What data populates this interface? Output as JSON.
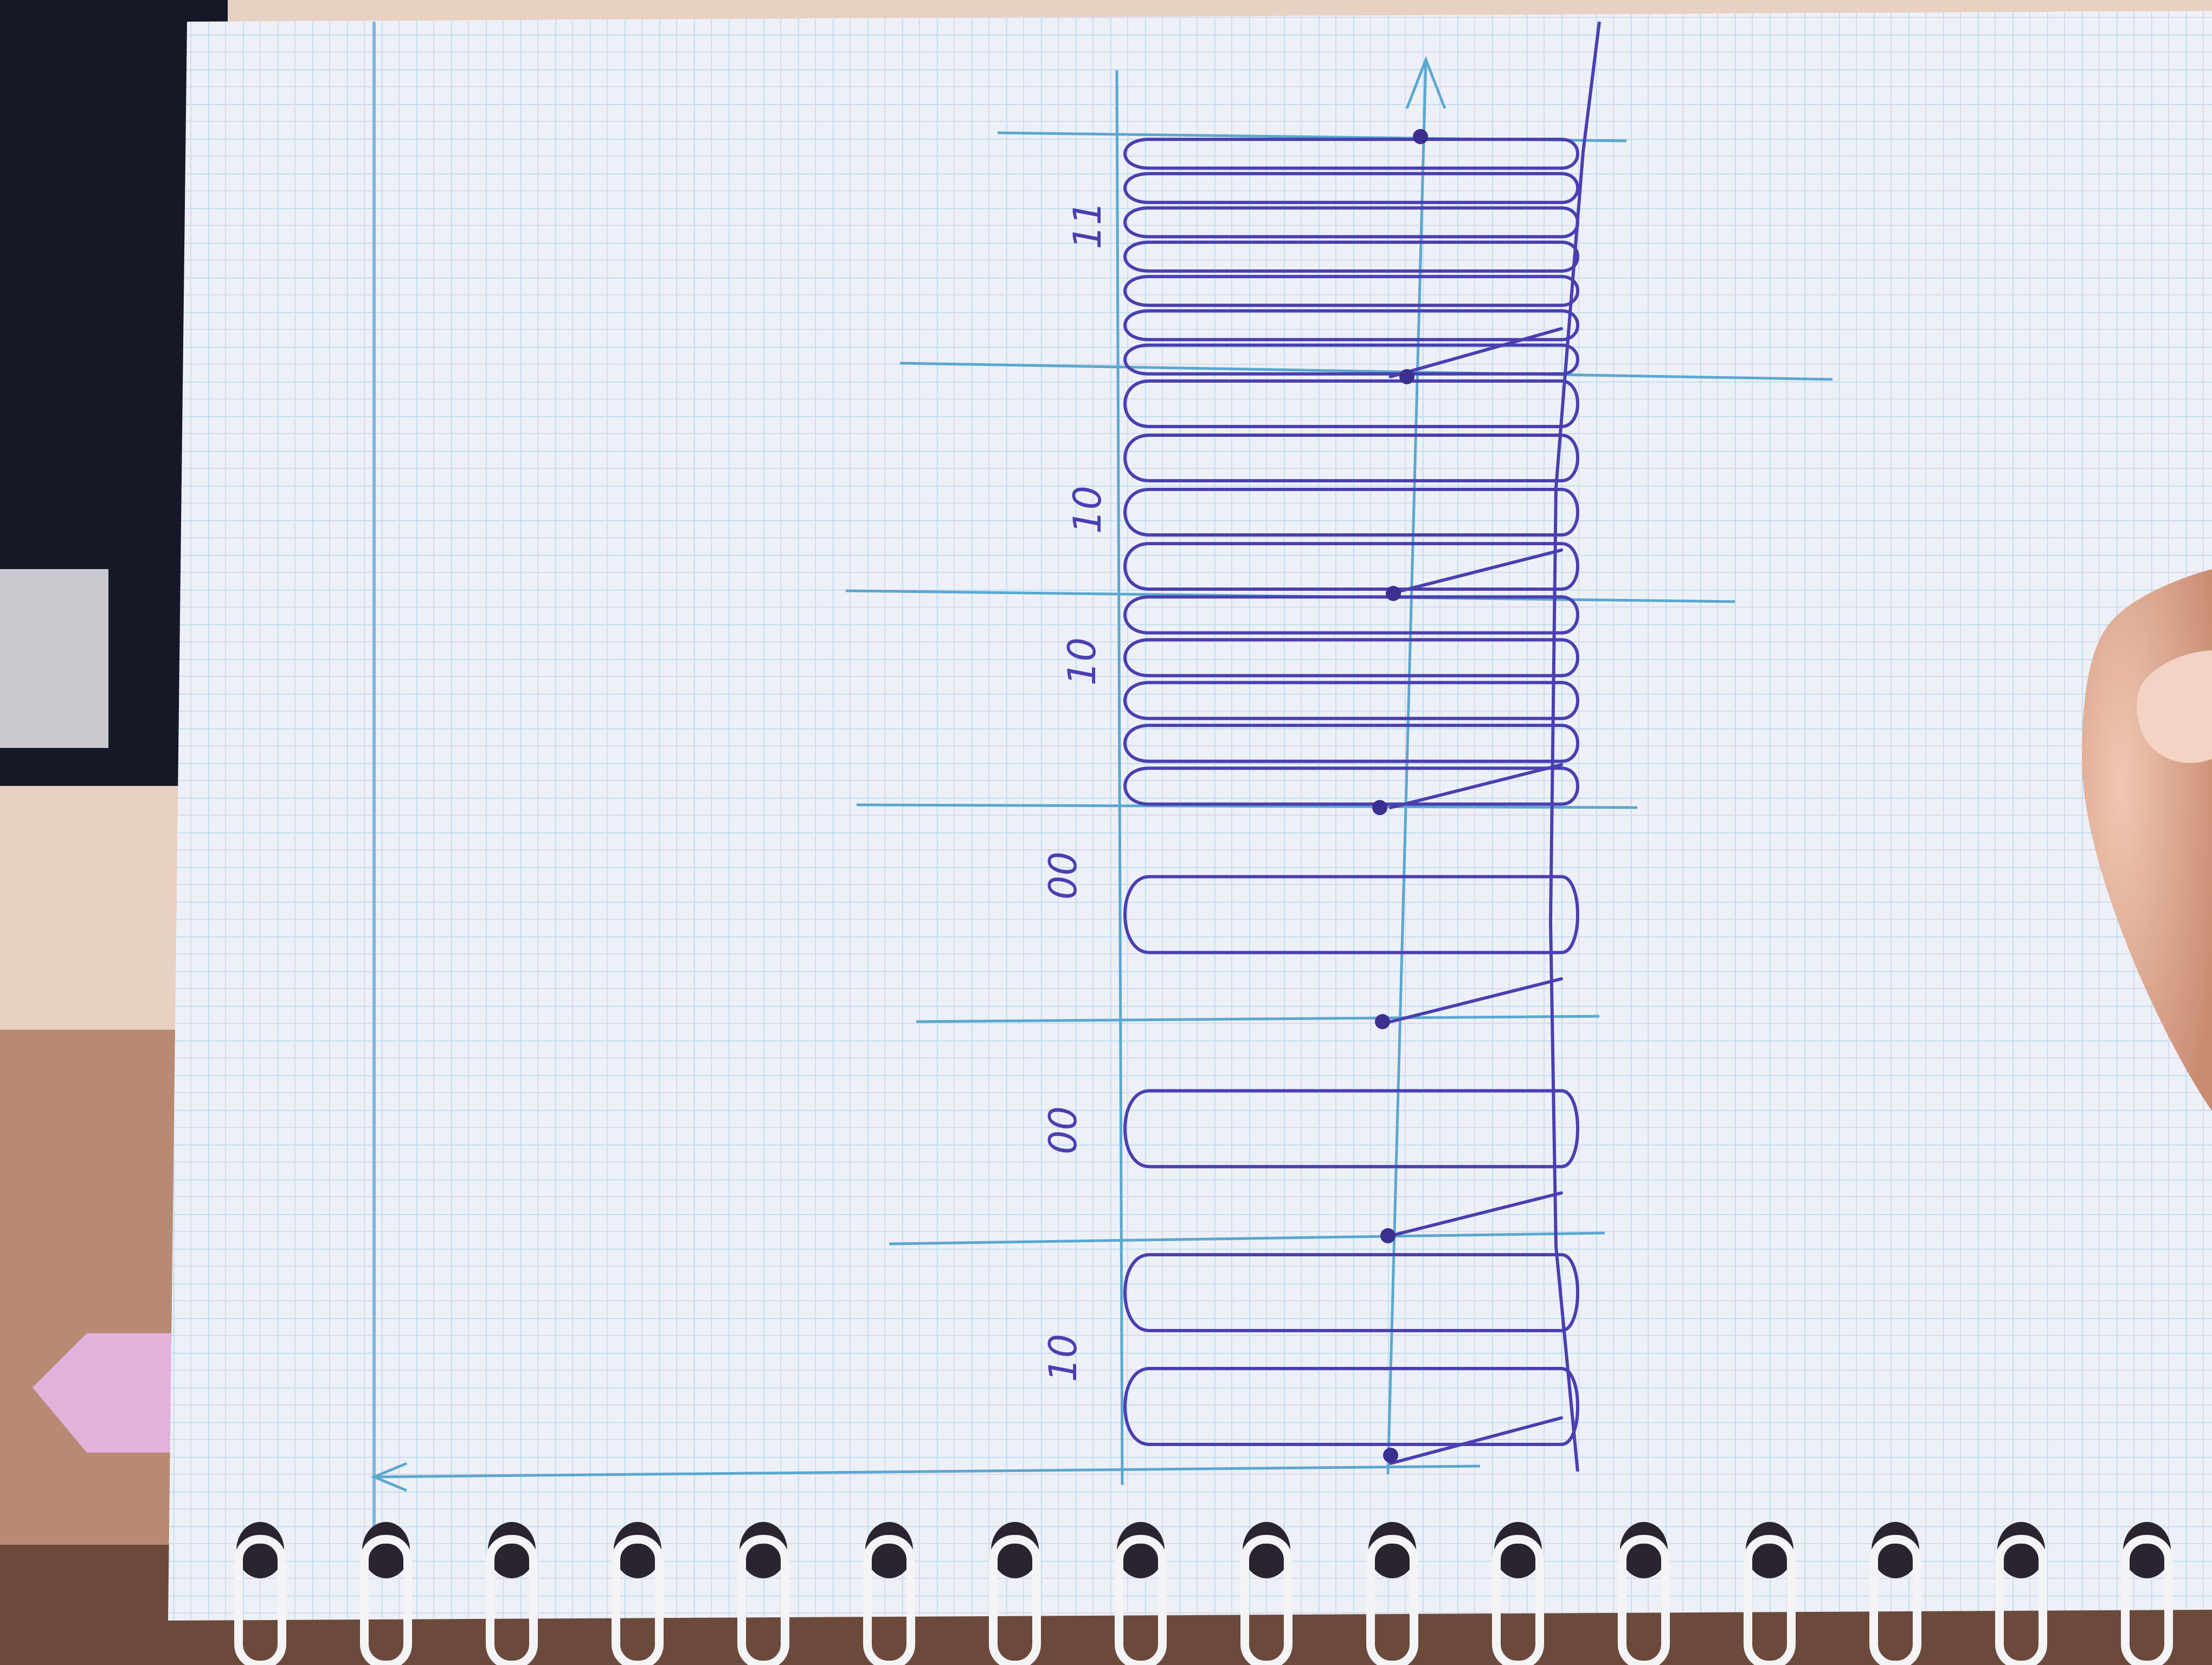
{
  "photo": {
    "subject": "hand-drawn signal waveform on a spiral notebook page",
    "background_colors": {
      "fabric": "#1a1d2e",
      "table": "#c08a6d",
      "floor": "#e8d0c2",
      "paper": "#eef0f7",
      "grid_blue": "#8ec9e6",
      "grid_pink": "#d8b8cc",
      "ink": "#4a3fb0",
      "axis_ink": "#5aa8d0",
      "tab": "#e3b2dc",
      "skin": "#d79f86"
    }
  },
  "waveform_segments": [
    {
      "label": "10",
      "pattern": "two pulses"
    },
    {
      "label": "00",
      "pattern": "one wide pulse"
    },
    {
      "label": "00",
      "pattern": "one wide pulse"
    },
    {
      "label": "10",
      "pattern": "five pulses"
    },
    {
      "label": "10",
      "pattern": "four pulses"
    },
    {
      "label": "11",
      "pattern": "seven pulses"
    }
  ],
  "labels": [
    "10",
    "00",
    "00",
    "10",
    "10",
    "11"
  ]
}
